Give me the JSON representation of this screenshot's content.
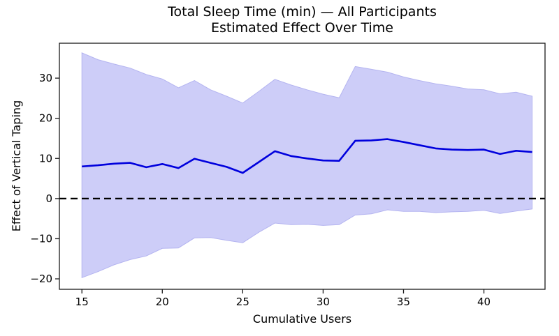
{
  "figure": {
    "title_line1": "Total Sleep Time (min) — All Participants",
    "title_line2": "Estimated Effect Over Time",
    "xlabel": "Cumulative Users",
    "ylabel": "Effect of Vertical Taping"
  },
  "chart_data": {
    "type": "line",
    "title": "Total Sleep Time (min) — All Participants\nEstimated Effect Over Time",
    "xlabel": "Cumulative Users",
    "ylabel": "Effect of Vertical Taping",
    "x": [
      15,
      16,
      17,
      18,
      19,
      20,
      21,
      22,
      23,
      24,
      25,
      26,
      27,
      28,
      29,
      30,
      31,
      32,
      33,
      34,
      35,
      36,
      37,
      38,
      39,
      40,
      41,
      42,
      43
    ],
    "series": [
      {
        "name": "estimated-effect",
        "values": [
          8.0,
          8.3,
          8.7,
          8.9,
          7.8,
          8.6,
          7.6,
          9.9,
          8.9,
          7.9,
          6.4,
          9.1,
          11.8,
          10.6,
          10.0,
          9.5,
          9.4,
          14.4,
          14.5,
          14.8,
          14.1,
          13.3,
          12.5,
          12.2,
          12.1,
          12.2,
          11.1,
          11.9,
          11.6
        ]
      },
      {
        "name": "ci-upper",
        "values": [
          36.3,
          34.6,
          33.5,
          32.5,
          30.9,
          29.8,
          27.6,
          29.4,
          27.1,
          25.5,
          23.8,
          26.7,
          29.7,
          28.3,
          27.1,
          26.0,
          25.1,
          32.9,
          32.2,
          31.5,
          30.3,
          29.4,
          28.6,
          28.0,
          27.3,
          27.1,
          26.1,
          26.5,
          25.5
        ]
      },
      {
        "name": "ci-lower",
        "values": [
          -19.7,
          -18.2,
          -16.5,
          -15.2,
          -14.3,
          -12.4,
          -12.3,
          -9.8,
          -9.7,
          -10.4,
          -11.0,
          -8.4,
          -6.1,
          -6.5,
          -6.4,
          -6.7,
          -6.5,
          -4.1,
          -3.8,
          -2.8,
          -3.2,
          -3.2,
          -3.5,
          -3.3,
          -3.2,
          -2.9,
          -3.7,
          -3.1,
          -2.6
        ]
      }
    ],
    "xlim": [
      13.6,
      43.8
    ],
    "ylim": [
      -22.6,
      38.7
    ],
    "x_ticks": [
      15,
      20,
      25,
      30,
      35,
      40
    ],
    "y_ticks": [
      -20,
      -10,
      0,
      10,
      20,
      30
    ],
    "y_tick_labels": [
      "−20",
      "−10",
      "0",
      "10",
      "20",
      "30"
    ],
    "x_tick_labels": [
      "15",
      "20",
      "25",
      "30",
      "35",
      "40"
    ],
    "zero_line": {
      "y": 0,
      "style": "dashed",
      "color": "#000000"
    },
    "colors": {
      "line": "#0000dd",
      "band_fill": "#cdcdf8",
      "band_edge": "#b4b4f0",
      "axes": "#1a1a1a"
    },
    "grid": false,
    "legend": false
  }
}
